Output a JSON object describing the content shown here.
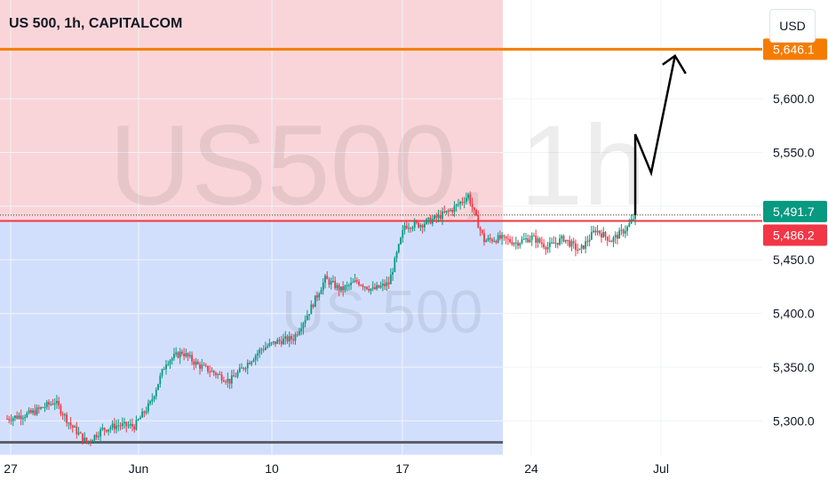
{
  "header": {
    "title": "US 500, 1h, CAPITALCOM",
    "currency": "USD"
  },
  "watermark": {
    "main": "US500, 1h",
    "sub": "US 500"
  },
  "colors": {
    "up": "#089981",
    "down": "#f23645",
    "target_line": "#f57c00",
    "entry_line": "#f23645",
    "profit_zone": "#f7c7cc",
    "loss_zone": "#c7d7fb",
    "arrow": "#000000",
    "grid": "#f0f3fa"
  },
  "chart_data": {
    "type": "candlestick",
    "symbol": "US 500",
    "interval": "1h",
    "source": "CAPITALCOM",
    "x_ticks": [
      "27",
      "Jun",
      "10",
      "17",
      "24",
      "Jul"
    ],
    "y_ticks": [
      "5,300.0",
      "5,350.0",
      "5,400.0",
      "5,450.0",
      "5,500.0",
      "5,550.0",
      "5,600.0"
    ],
    "y_tick_values": [
      5300,
      5350,
      5400,
      5450,
      5500,
      5550,
      5600
    ],
    "ylim": [
      5275,
      5680
    ],
    "price_labels": [
      {
        "label": "5,646.1",
        "value": 5646.1,
        "kind": "target"
      },
      {
        "label": "5,491.7",
        "value": 5491.7,
        "kind": "last-price"
      },
      {
        "label": "5,486.2",
        "value": 5486.2,
        "kind": "entry"
      }
    ],
    "last_price": 5491.7,
    "levels": {
      "target": 5646.1,
      "entry": 5486.2,
      "stop": 5280
    },
    "path": [
      [
        0,
        5302
      ],
      [
        3,
        5307
      ],
      [
        6,
        5318
      ],
      [
        8,
        5296
      ],
      [
        10,
        5280
      ],
      [
        12,
        5292
      ],
      [
        14,
        5296
      ],
      [
        16,
        5295
      ],
      [
        18,
        5316
      ],
      [
        20,
        5355
      ],
      [
        22,
        5364
      ],
      [
        24,
        5352
      ],
      [
        26,
        5345
      ],
      [
        28,
        5337
      ],
      [
        30,
        5352
      ],
      [
        32,
        5367
      ],
      [
        34,
        5374
      ],
      [
        36,
        5377
      ],
      [
        38,
        5402
      ],
      [
        40,
        5432
      ],
      [
        42,
        5422
      ],
      [
        44,
        5430
      ],
      [
        46,
        5422
      ],
      [
        48,
        5428
      ],
      [
        50,
        5482
      ],
      [
        52,
        5483
      ],
      [
        54,
        5489
      ],
      [
        56,
        5497
      ],
      [
        58,
        5510
      ],
      [
        59,
        5488
      ],
      [
        60,
        5468
      ],
      [
        62,
        5470
      ],
      [
        64,
        5466
      ],
      [
        66,
        5471
      ],
      [
        68,
        5462
      ],
      [
        70,
        5470
      ],
      [
        72,
        5458
      ],
      [
        74,
        5478
      ],
      [
        76,
        5468
      ],
      [
        78,
        5480
      ],
      [
        79,
        5491.7
      ]
    ],
    "projection": [
      [
        79,
        5491.7
      ],
      [
        79,
        5567
      ],
      [
        81,
        5531
      ],
      [
        84,
        5640
      ]
    ]
  }
}
